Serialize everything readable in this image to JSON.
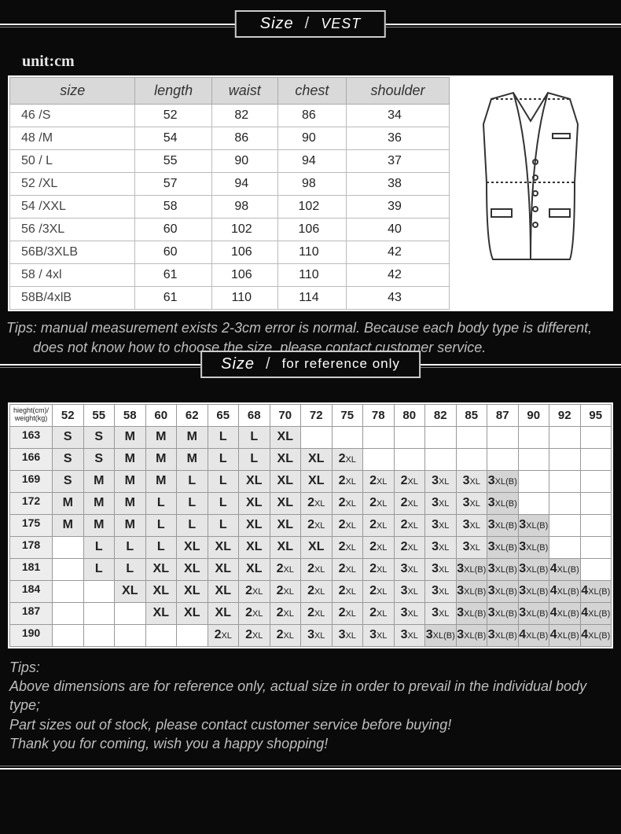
{
  "section1": {
    "title": "Size",
    "sub": "VEST",
    "unit": "unit:cm"
  },
  "size_headers": [
    "size",
    "length",
    "waist",
    "chest",
    "shoulder"
  ],
  "size_rows": [
    {
      "size": "46 /S",
      "length": "52",
      "waist": "82",
      "chest": "86",
      "shoulder": "34"
    },
    {
      "size": "48 /M",
      "length": "54",
      "waist": "86",
      "chest": "90",
      "shoulder": "36"
    },
    {
      "size": "50 / L",
      "length": "55",
      "waist": "90",
      "chest": "94",
      "shoulder": "37"
    },
    {
      "size": "52 /XL",
      "length": "57",
      "waist": "94",
      "chest": "98",
      "shoulder": "38"
    },
    {
      "size": "54 /XXL",
      "length": "58",
      "waist": "98",
      "chest": "102",
      "shoulder": "39"
    },
    {
      "size": "56 /3XL",
      "length": "60",
      "waist": "102",
      "chest": "106",
      "shoulder": "40"
    },
    {
      "size": "56B/3XLB",
      "length": "60",
      "waist": "106",
      "chest": "110",
      "shoulder": "42"
    },
    {
      "size": "58 / 4xl",
      "length": "61",
      "waist": "106",
      "chest": "110",
      "shoulder": "42"
    },
    {
      "size": "58B/4xlB",
      "length": "61",
      "waist": "110",
      "chest": "114",
      "shoulder": "43"
    }
  ],
  "tips1_l1": "Tips: manual measurement exists 2-3cm error is normal. Because each body type is different,",
  "tips1_l2": "does not know how to choose the size, please contact customer service.",
  "section2": {
    "title": "Size",
    "sub": "for reference only"
  },
  "ref_corner": "hieght(cm)/ weight(kg)",
  "ref_weights": [
    "52",
    "55",
    "58",
    "60",
    "62",
    "65",
    "68",
    "70",
    "72",
    "75",
    "78",
    "80",
    "82",
    "85",
    "87",
    "90",
    "92",
    "95"
  ],
  "ref_heights": [
    "163",
    "166",
    "169",
    "172",
    "175",
    "178",
    "181",
    "184",
    "187",
    "190"
  ],
  "ref_grid": [
    [
      "S",
      "S",
      "M",
      "M",
      "M",
      "L",
      "L",
      "XL",
      "",
      "",
      "",
      "",
      "",
      "",
      "",
      "",
      "",
      ""
    ],
    [
      "S",
      "S",
      "M",
      "M",
      "M",
      "L",
      "L",
      "XL",
      "XL",
      "2XL",
      "",
      "",
      "",
      "",
      "",
      "",
      "",
      ""
    ],
    [
      "S",
      "M",
      "M",
      "M",
      "L",
      "L",
      "XL",
      "XL",
      "XL",
      "2XL",
      "2XL",
      "2XL",
      "3XL",
      "3XL",
      "3XL(B)",
      "",
      "",
      ""
    ],
    [
      "M",
      "M",
      "M",
      "L",
      "L",
      "L",
      "XL",
      "XL",
      "2XL",
      "2XL",
      "2XL",
      "2XL",
      "3XL",
      "3XL",
      "3XL(B)",
      "",
      "",
      ""
    ],
    [
      "M",
      "M",
      "M",
      "L",
      "L",
      "L",
      "XL",
      "XL",
      "2XL",
      "2XL",
      "2XL",
      "2XL",
      "3XL",
      "3XL",
      "3XL(B)",
      "3XL(B)",
      "",
      ""
    ],
    [
      "",
      "L",
      "L",
      "L",
      "XL",
      "XL",
      "XL",
      "XL",
      "XL",
      "2XL",
      "2XL",
      "2XL",
      "3XL",
      "3XL",
      "3XL(B)",
      "3XL(B)",
      "",
      ""
    ],
    [
      "",
      "L",
      "L",
      "XL",
      "XL",
      "XL",
      "XL",
      "2XL",
      "2XL",
      "2XL",
      "2XL",
      "3XL",
      "3XL",
      "3XL(B)",
      "3XL(B)",
      "3XL(B)",
      "4XL(B)",
      ""
    ],
    [
      "",
      "",
      "XL",
      "XL",
      "XL",
      "XL",
      "2XL",
      "2XL",
      "2XL",
      "2XL",
      "2XL",
      "3XL",
      "3XL",
      "3XL(B)",
      "3XL(B)",
      "3XL(B)",
      "4XL(B)",
      "4XL(B)"
    ],
    [
      "",
      "",
      "",
      "XL",
      "XL",
      "XL",
      "2XL",
      "2XL",
      "2XL",
      "2XL",
      "2XL",
      "3XL",
      "3XL",
      "3XL(B)",
      "3XL(B)",
      "3XL(B)",
      "4XL(B)",
      "4XL(B)"
    ],
    [
      "",
      "",
      "",
      "",
      "",
      "2XL",
      "2XL",
      "2XL",
      "3XL",
      "3XL",
      "3XL",
      "3XL",
      "3XL(B)",
      "3XL(B)",
      "3XL(B)",
      "4XL(B)",
      "4XL(B)",
      "4XL(B)"
    ]
  ],
  "ref_shade": {
    "g1_cols_max": {
      "163": 7,
      "166": 9,
      "169": 14,
      "172": 14,
      "175": 15,
      "178": 15,
      "181": 16,
      "184": 16,
      "187": 16,
      "190": 14
    },
    "g2_start": {
      "178": 1,
      "181": 1,
      "184": 2,
      "187": 3,
      "190": 5
    }
  },
  "tips2_l1": "Tips:",
  "tips2_l2": "Above dimensions are for reference only, actual size in order to prevail in the individual body type;",
  "tips2_l3": "Part sizes out of stock, please contact customer service before buying!",
  "tips2_l4": "Thank you for coming, wish you a happy shopping!",
  "colors": {
    "bg": "#0a0a0a",
    "text": "#ffffff",
    "th_bg": "#d9d9d9",
    "g1": "#e6e6e6",
    "g2": "#d4d4d4",
    "border": "#999999"
  }
}
